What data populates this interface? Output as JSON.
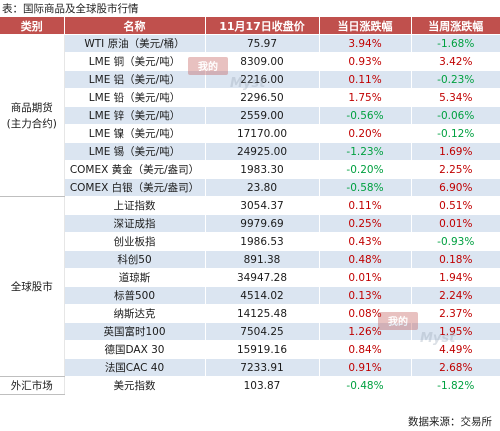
{
  "caption": "表：国际商品及全球股市行情",
  "headers": [
    "类别",
    "名称",
    "11月17日收盘价",
    "当日涨跌幅",
    "当周涨跌幅"
  ],
  "sections": [
    {
      "category": "商品期货\n(主力合约)",
      "rows": [
        {
          "name": "WTI 原油（美元/桶）",
          "close": "75.97",
          "daily": "3.94%",
          "daily_dir": "pos",
          "weekly": "-1.68%",
          "weekly_dir": "neg"
        },
        {
          "name": "LME 铜（美元/吨）",
          "close": "8309.00",
          "daily": "0.93%",
          "daily_dir": "pos",
          "weekly": "3.42%",
          "weekly_dir": "pos"
        },
        {
          "name": "LME 铝（美元/吨）",
          "close": "2216.00",
          "daily": "0.11%",
          "daily_dir": "pos",
          "weekly": "-0.23%",
          "weekly_dir": "neg"
        },
        {
          "name": "LME 铅（美元/吨）",
          "close": "2296.50",
          "daily": "1.75%",
          "daily_dir": "pos",
          "weekly": "5.34%",
          "weekly_dir": "pos"
        },
        {
          "name": "LME 锌（美元/吨）",
          "close": "2559.00",
          "daily": "-0.56%",
          "daily_dir": "neg",
          "weekly": "-0.06%",
          "weekly_dir": "neg"
        },
        {
          "name": "LME 镍（美元/吨）",
          "close": "17170.00",
          "daily": "0.20%",
          "daily_dir": "pos",
          "weekly": "-0.12%",
          "weekly_dir": "neg"
        },
        {
          "name": "LME 锡（美元/吨）",
          "close": "24925.00",
          "daily": "-1.23%",
          "daily_dir": "neg",
          "weekly": "1.69%",
          "weekly_dir": "pos"
        },
        {
          "name": "COMEX 黄金（美元/盎司）",
          "close": "1983.30",
          "daily": "-0.20%",
          "daily_dir": "neg",
          "weekly": "2.25%",
          "weekly_dir": "pos"
        },
        {
          "name": "COMEX 白银（美元/盎司）",
          "close": "23.80",
          "daily": "-0.58%",
          "daily_dir": "neg",
          "weekly": "6.90%",
          "weekly_dir": "pos"
        }
      ]
    },
    {
      "category": "全球股市",
      "rows": [
        {
          "name": "上证指数",
          "close": "3054.37",
          "daily": "0.11%",
          "daily_dir": "pos",
          "weekly": "0.51%",
          "weekly_dir": "pos"
        },
        {
          "name": "深证成指",
          "close": "9979.69",
          "daily": "0.25%",
          "daily_dir": "pos",
          "weekly": "0.01%",
          "weekly_dir": "pos"
        },
        {
          "name": "创业板指",
          "close": "1986.53",
          "daily": "0.43%",
          "daily_dir": "pos",
          "weekly": "-0.93%",
          "weekly_dir": "neg"
        },
        {
          "name": "科创50",
          "close": "891.38",
          "daily": "0.48%",
          "daily_dir": "pos",
          "weekly": "0.18%",
          "weekly_dir": "pos"
        },
        {
          "name": "道琼斯",
          "close": "34947.28",
          "daily": "0.01%",
          "daily_dir": "pos",
          "weekly": "1.94%",
          "weekly_dir": "pos"
        },
        {
          "name": "标普500",
          "close": "4514.02",
          "daily": "0.13%",
          "daily_dir": "pos",
          "weekly": "2.24%",
          "weekly_dir": "pos"
        },
        {
          "name": "纳斯达克",
          "close": "14125.48",
          "daily": "0.08%",
          "daily_dir": "pos",
          "weekly": "2.37%",
          "weekly_dir": "pos"
        },
        {
          "name": "英国富时100",
          "close": "7504.25",
          "daily": "1.26%",
          "daily_dir": "pos",
          "weekly": "1.95%",
          "weekly_dir": "pos"
        },
        {
          "name": "德国DAX 30",
          "close": "15919.16",
          "daily": "0.84%",
          "daily_dir": "pos",
          "weekly": "4.49%",
          "weekly_dir": "pos"
        },
        {
          "name": "法国CAC 40",
          "close": "7233.91",
          "daily": "0.91%",
          "daily_dir": "pos",
          "weekly": "2.68%",
          "weekly_dir": "pos"
        }
      ]
    },
    {
      "category": "外汇市场",
      "rows": [
        {
          "name": "美元指数",
          "close": "103.87",
          "daily": "-0.48%",
          "daily_dir": "neg",
          "weekly": "-1.82%",
          "weekly_dir": "neg"
        }
      ]
    }
  ],
  "source": "数据来源：交易所",
  "colors": {
    "header_bg": "#c0504d",
    "stripe": "#dbe5f1",
    "up": "#c00000",
    "down": "#00a040"
  },
  "watermark": {
    "brand_text": "我的钢铁",
    "brand_latin": "Mysteel.com"
  }
}
